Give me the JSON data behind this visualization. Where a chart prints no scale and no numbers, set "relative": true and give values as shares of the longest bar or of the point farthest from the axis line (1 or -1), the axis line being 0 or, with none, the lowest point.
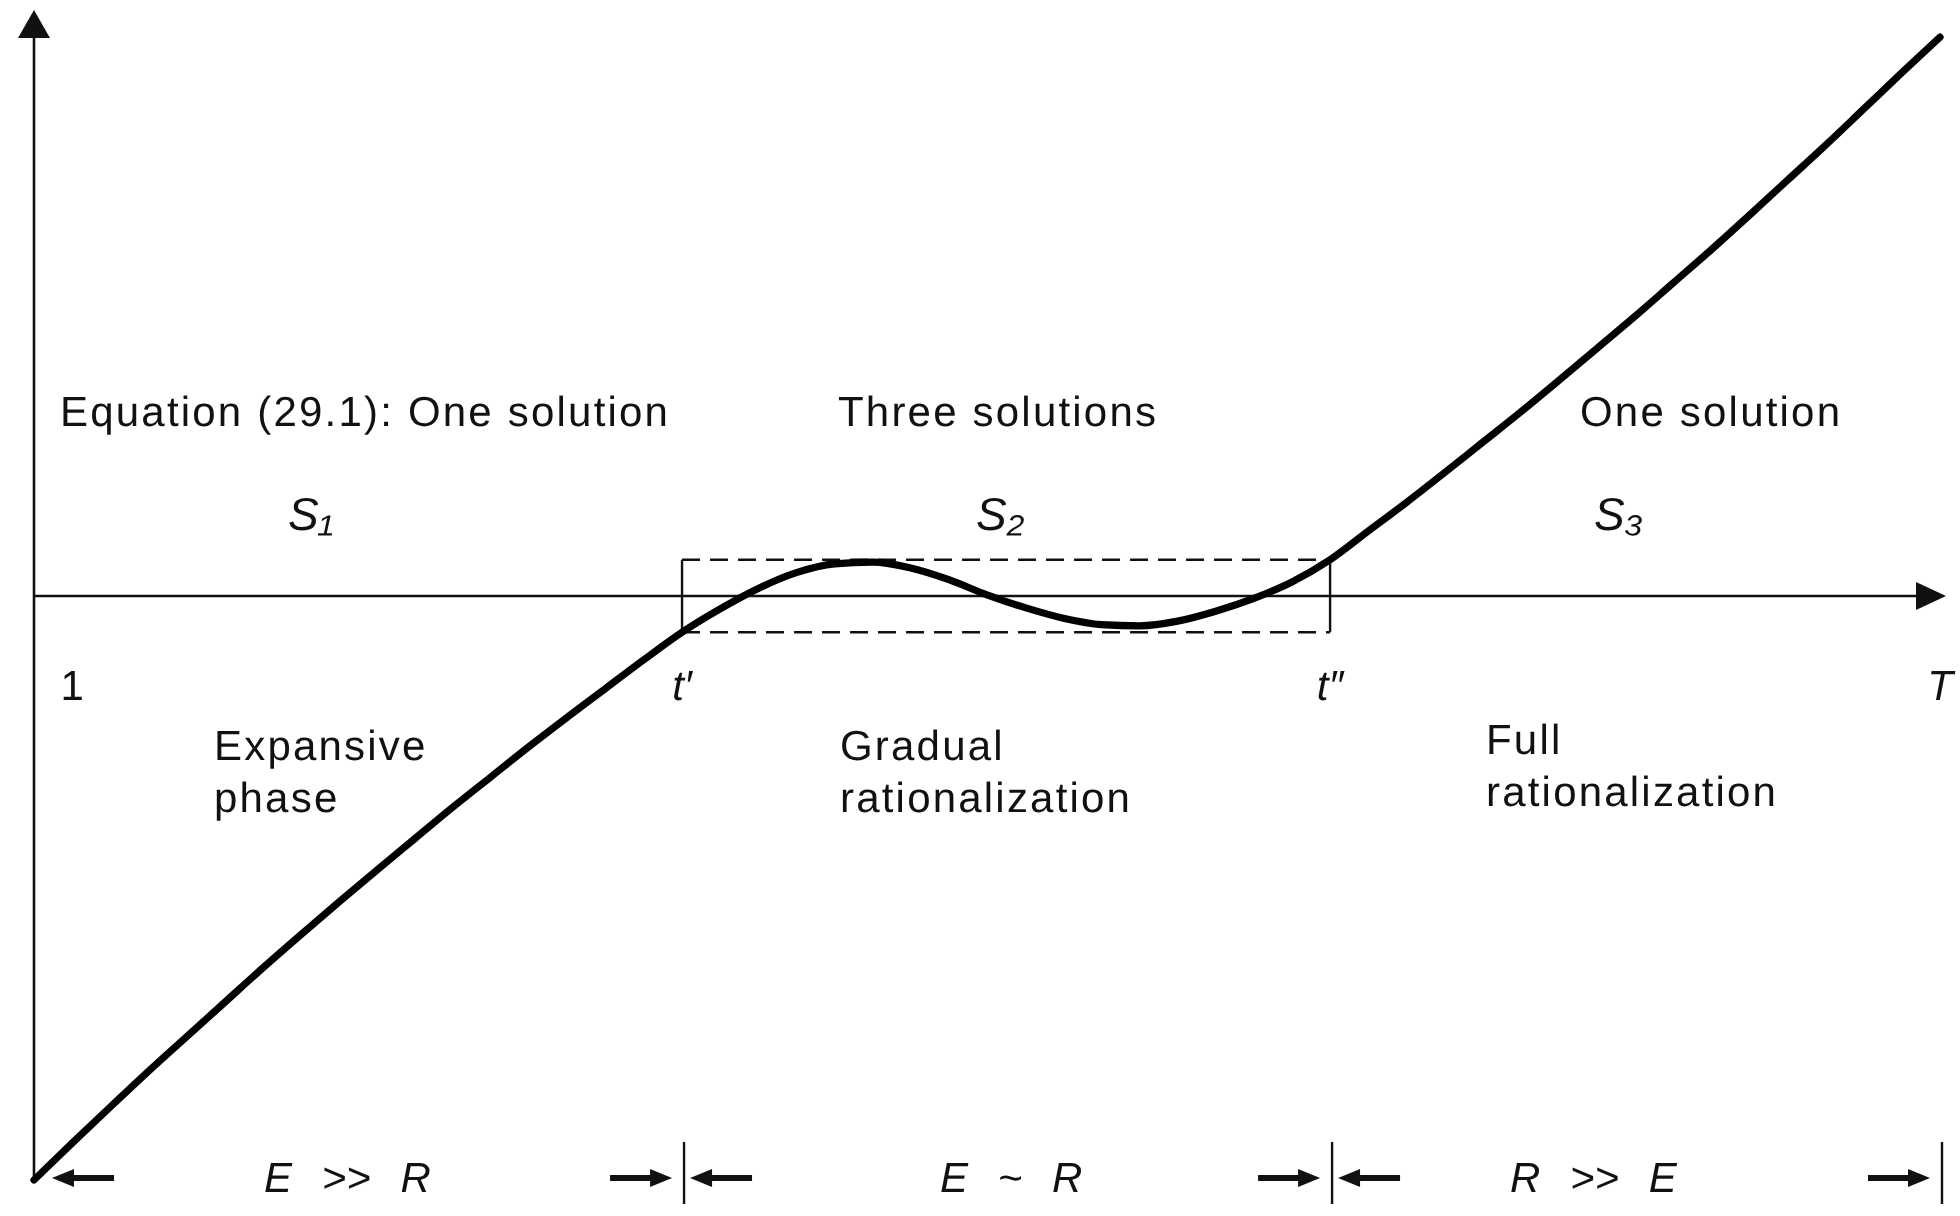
{
  "chart_data": {
    "type": "line",
    "relative": true,
    "line_style": "solid",
    "color": "#000000",
    "categories": [
      null,
      "1",
      null,
      null,
      null,
      null,
      null,
      null,
      null,
      null,
      null,
      null,
      null,
      null,
      null,
      null,
      null,
      "t′",
      null,
      null,
      null,
      null,
      null,
      null,
      null,
      null,
      null,
      null,
      null,
      null,
      null,
      null,
      null,
      null,
      "t″",
      null,
      null,
      null,
      null,
      null,
      null,
      null,
      null,
      null,
      null,
      null,
      null,
      null,
      null,
      null,
      "T"
    ],
    "values": [
      -1,
      -0.937,
      -0.875,
      -0.814,
      -0.755,
      -0.696,
      -0.637,
      -0.58,
      -0.524,
      -0.469,
      -0.415,
      -0.361,
      -0.309,
      -0.257,
      -0.207,
      -0.158,
      -0.109,
      -0.062,
      -0.022,
      0.013,
      0.04,
      0.055,
      0.058,
      0.048,
      0.028,
      0.002,
      -0.02,
      -0.038,
      -0.049,
      -0.051,
      -0.043,
      -0.026,
      -0.004,
      0.024,
      0.062,
      0.111,
      0.16,
      0.211,
      0.263,
      0.315,
      0.369,
      0.424,
      0.479,
      0.536,
      0.593,
      0.652,
      0.712,
      0.772,
      0.834,
      0.896,
      0.957
    ],
    "annotations": [
      "Equation (29.1): One solution",
      "Three solutions",
      "One solution",
      "S₁",
      "S₂",
      "S₃",
      "Expansive phase",
      "Gradual rationalization",
      "Full rationalization",
      "E >> R",
      "E ~ R",
      "R >> E"
    ]
  }
}
